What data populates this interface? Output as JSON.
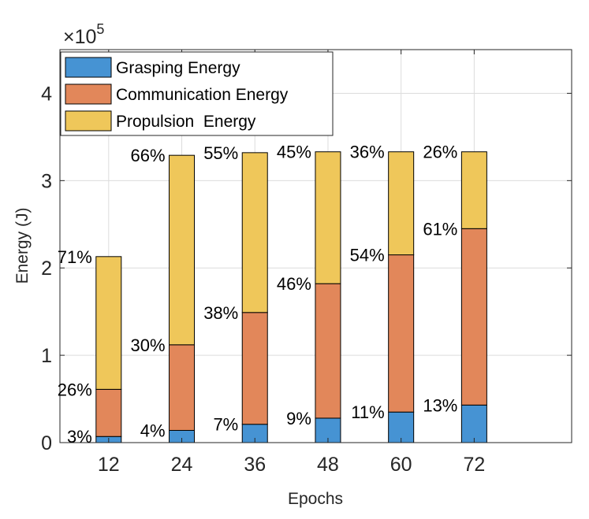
{
  "chart_data": {
    "type": "stacked-bar",
    "xlabel": "Epochs",
    "ylabel": "Energy (J)",
    "y_multiplier": {
      "base": "×10",
      "exponent": "5"
    },
    "ylim": [
      0,
      4.5
    ],
    "yticks": [
      "0",
      "1",
      "2",
      "3",
      "4"
    ],
    "ytick_values": [
      0,
      1,
      2,
      3,
      4
    ],
    "xlim": [
      4,
      88
    ],
    "categories": [
      "12",
      "24",
      "36",
      "48",
      "60",
      "72"
    ],
    "x": [
      12,
      24,
      36,
      48,
      60,
      72
    ],
    "grid": true,
    "legend_position": "top-left",
    "series": [
      {
        "name": "Grasping Energy",
        "color": "#4693d3",
        "values": [
          0.07,
          0.14,
          0.21,
          0.28,
          0.35,
          0.43
        ],
        "percent_labels": [
          "3%",
          "4%",
          "7%",
          "9%",
          "11%",
          "13%"
        ]
      },
      {
        "name": "Communication Energy",
        "color": "#e2875a",
        "values": [
          0.54,
          0.98,
          1.28,
          1.54,
          1.8,
          2.02
        ],
        "percent_labels": [
          "26%",
          "30%",
          "38%",
          "46%",
          "54%",
          "61%"
        ]
      },
      {
        "name": "Propulsion  Energy",
        "color": "#efc75a",
        "values": [
          1.52,
          2.17,
          1.83,
          1.51,
          1.18,
          0.88
        ],
        "percent_labels": [
          "71%",
          "66%",
          "55%",
          "45%",
          "36%",
          "26%"
        ]
      }
    ]
  }
}
